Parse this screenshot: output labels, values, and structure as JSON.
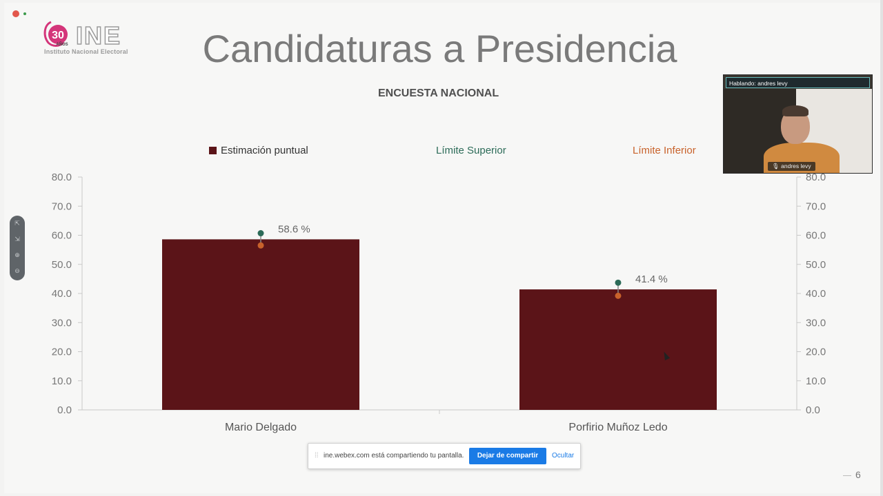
{
  "recording": {
    "indicator_color": "#e2574c"
  },
  "logo": {
    "badge_number": "30",
    "badge_text": "AÑOS",
    "wordmark": "INE",
    "institution": "Instituto Nacional Electoral"
  },
  "slide": {
    "title": "Candidaturas a Presidencia",
    "page_number": "6"
  },
  "chart_data": {
    "type": "bar",
    "title": "ENCUESTA NACIONAL",
    "categories": [
      "Mario Delgado",
      "Porfirio Muñoz Ledo"
    ],
    "series": [
      {
        "name": "Estimación puntual",
        "values": [
          58.6,
          41.4
        ],
        "color": "#5b1418"
      },
      {
        "name": "Límite Superior",
        "values": [
          60.7,
          43.7
        ],
        "color": "#2c6b58"
      },
      {
        "name": "Límite Inferior",
        "values": [
          56.5,
          39.2
        ],
        "color": "#c8622b"
      }
    ],
    "data_labels": [
      "58.6 %",
      "41.4 %"
    ],
    "ylim": [
      0,
      80
    ],
    "yticks": [
      "0.0",
      "10.0",
      "20.0",
      "30.0",
      "40.0",
      "50.0",
      "60.0",
      "70.0",
      "80.0"
    ],
    "secondary_axis": true,
    "legend": "top"
  },
  "video": {
    "speaking_label": "Hablando: andres levy",
    "participant_name": "andres levy"
  },
  "zoom_controls": [
    "⇱",
    "⇲",
    "⊕",
    "⊖"
  ],
  "share_bar": {
    "message": "ine.webex.com está compartiendo tu pantalla.",
    "stop_button": "Dejar de compartir",
    "hide_link": "Ocultar"
  }
}
